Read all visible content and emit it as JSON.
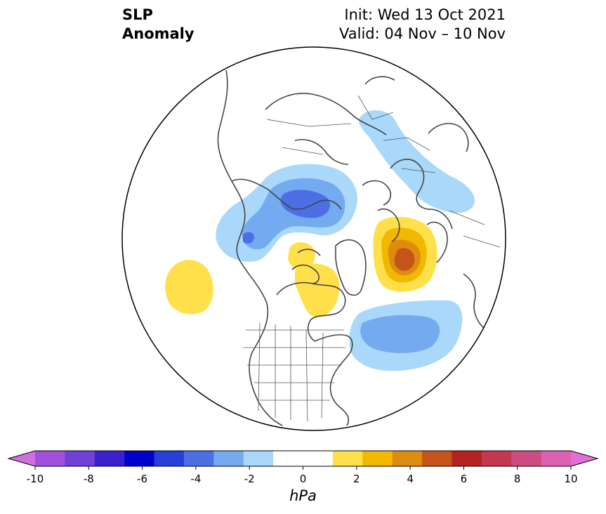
{
  "title": {
    "left": "SLP\nAnomaly",
    "right_line1": "Init: Wed 13 Oct 2021",
    "right_line2": "Valid: 04 Nov – 10 Nov"
  },
  "colorbar": {
    "units": "hPa",
    "ticks": [
      -10,
      -8,
      -6,
      -4,
      -2,
      0,
      2,
      4,
      6,
      8,
      10
    ],
    "tick_labels": [
      "-10",
      "-8",
      "-6",
      "-4",
      "-2",
      "0",
      "2",
      "4",
      "6",
      "8",
      "10"
    ],
    "bounds": [
      -10,
      10
    ],
    "step": 1,
    "colors": [
      "#a050dd",
      "#7040d8",
      "#3c1fcf",
      "#0000cd",
      "#2640d8",
      "#4c6fe4",
      "#74aaf0",
      "#aad8fa",
      "#ffffff",
      "#ffffff",
      "#ffe04a",
      "#f2b800",
      "#de8c10",
      "#c45418",
      "#b42222",
      "#c43850",
      "#cc4c80",
      "#dc60b4"
    ],
    "under_color": "#d070e0",
    "over_color": "#e070d8"
  },
  "map": {
    "projection": "north-polar-stereographic",
    "anomaly_centers": [
      {
        "region": "north-atlantic",
        "value_hpa": -4
      },
      {
        "region": "europe-mediterranean",
        "value_hpa": -2
      },
      {
        "region": "siberia-arctic-ocean",
        "value_hpa": -4
      },
      {
        "region": "alaska-bering",
        "value_hpa": -3
      },
      {
        "region": "greenland-canadian-arctic",
        "value_hpa": 1
      },
      {
        "region": "hudson-bay",
        "value_hpa": 1
      },
      {
        "region": "north-pacific",
        "value_hpa": 1
      },
      {
        "region": "east-siberia",
        "value_hpa": 5
      }
    ],
    "colors": {
      "land_outline": "#444444",
      "map_border": "#000000",
      "ocean": "#ffffff"
    }
  }
}
